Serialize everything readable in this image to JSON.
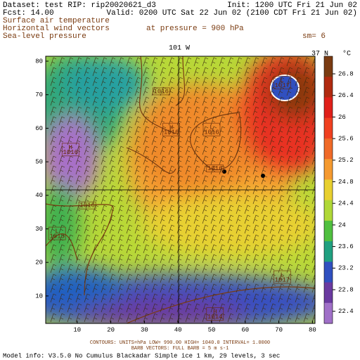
{
  "header": {
    "dataset": "Dataset: test  RIP: rip20020621_d3",
    "init": "Init: 1200 UTC Fri 21 Jun 02",
    "fcst": "Fcst:    14.00",
    "valid": "Valid: 0200 UTC Sat 22 Jun 02 (2100 CDT Fri 21 Jun 02)",
    "fields": [
      "Surface air temperature",
      "Horizontal wind vectors",
      "Sea-level pressure"
    ],
    "pressure": "at pressure =  900 hPa",
    "smoothing": "sm= 6"
  },
  "plot": {
    "top_label": "101 W",
    "corner_label": "37 N",
    "xticks": [
      10,
      20,
      30,
      40,
      50,
      60,
      70,
      80
    ],
    "yticks": [
      10,
      20,
      30,
      40,
      50,
      60,
      70,
      80
    ],
    "labels": [
      {
        "letter": "H",
        "number": "1016",
        "x": 8,
        "y": 53
      },
      {
        "number": "1016",
        "x": 35,
        "y": 71
      },
      {
        "letter": "H",
        "number": "1016",
        "x": 38,
        "y": 59
      },
      {
        "letter": "L",
        "number": "1016",
        "x": 50,
        "y": 59
      },
      {
        "number": "1016",
        "x": 51,
        "y": 48
      },
      {
        "number": "1016",
        "x": 13,
        "y": 37
      },
      {
        "letter": "L",
        "number": "1013",
        "x": 4,
        "y": 28
      },
      {
        "letter": "L",
        "number": "1017",
        "x": 71,
        "y": 73
      },
      {
        "letter": "L",
        "number": "1017",
        "x": 71,
        "y": 15
      },
      {
        "letter": "H",
        "number": "1014",
        "x": 51,
        "y": 4
      }
    ]
  },
  "colorbar": {
    "unit": "°C",
    "ticks": [
      26.8,
      26.4,
      26,
      25.6,
      25.2,
      24.8,
      24.4,
      24,
      23.6,
      23.2,
      22.8,
      22.4
    ]
  },
  "footer": {
    "contours": "CONTOURS:  UNITS=hPa   LOW=   990.00      HIGH=   1040.0      INTERVAL=    1.0000",
    "barbs": "BARB VECTORS:  FULL BARB = 5 m s-1",
    "model": "Model info: V3.5.0  No Cumulus  Blackadar  Simple ice    1 km,   29 levels,    3 sec"
  }
}
